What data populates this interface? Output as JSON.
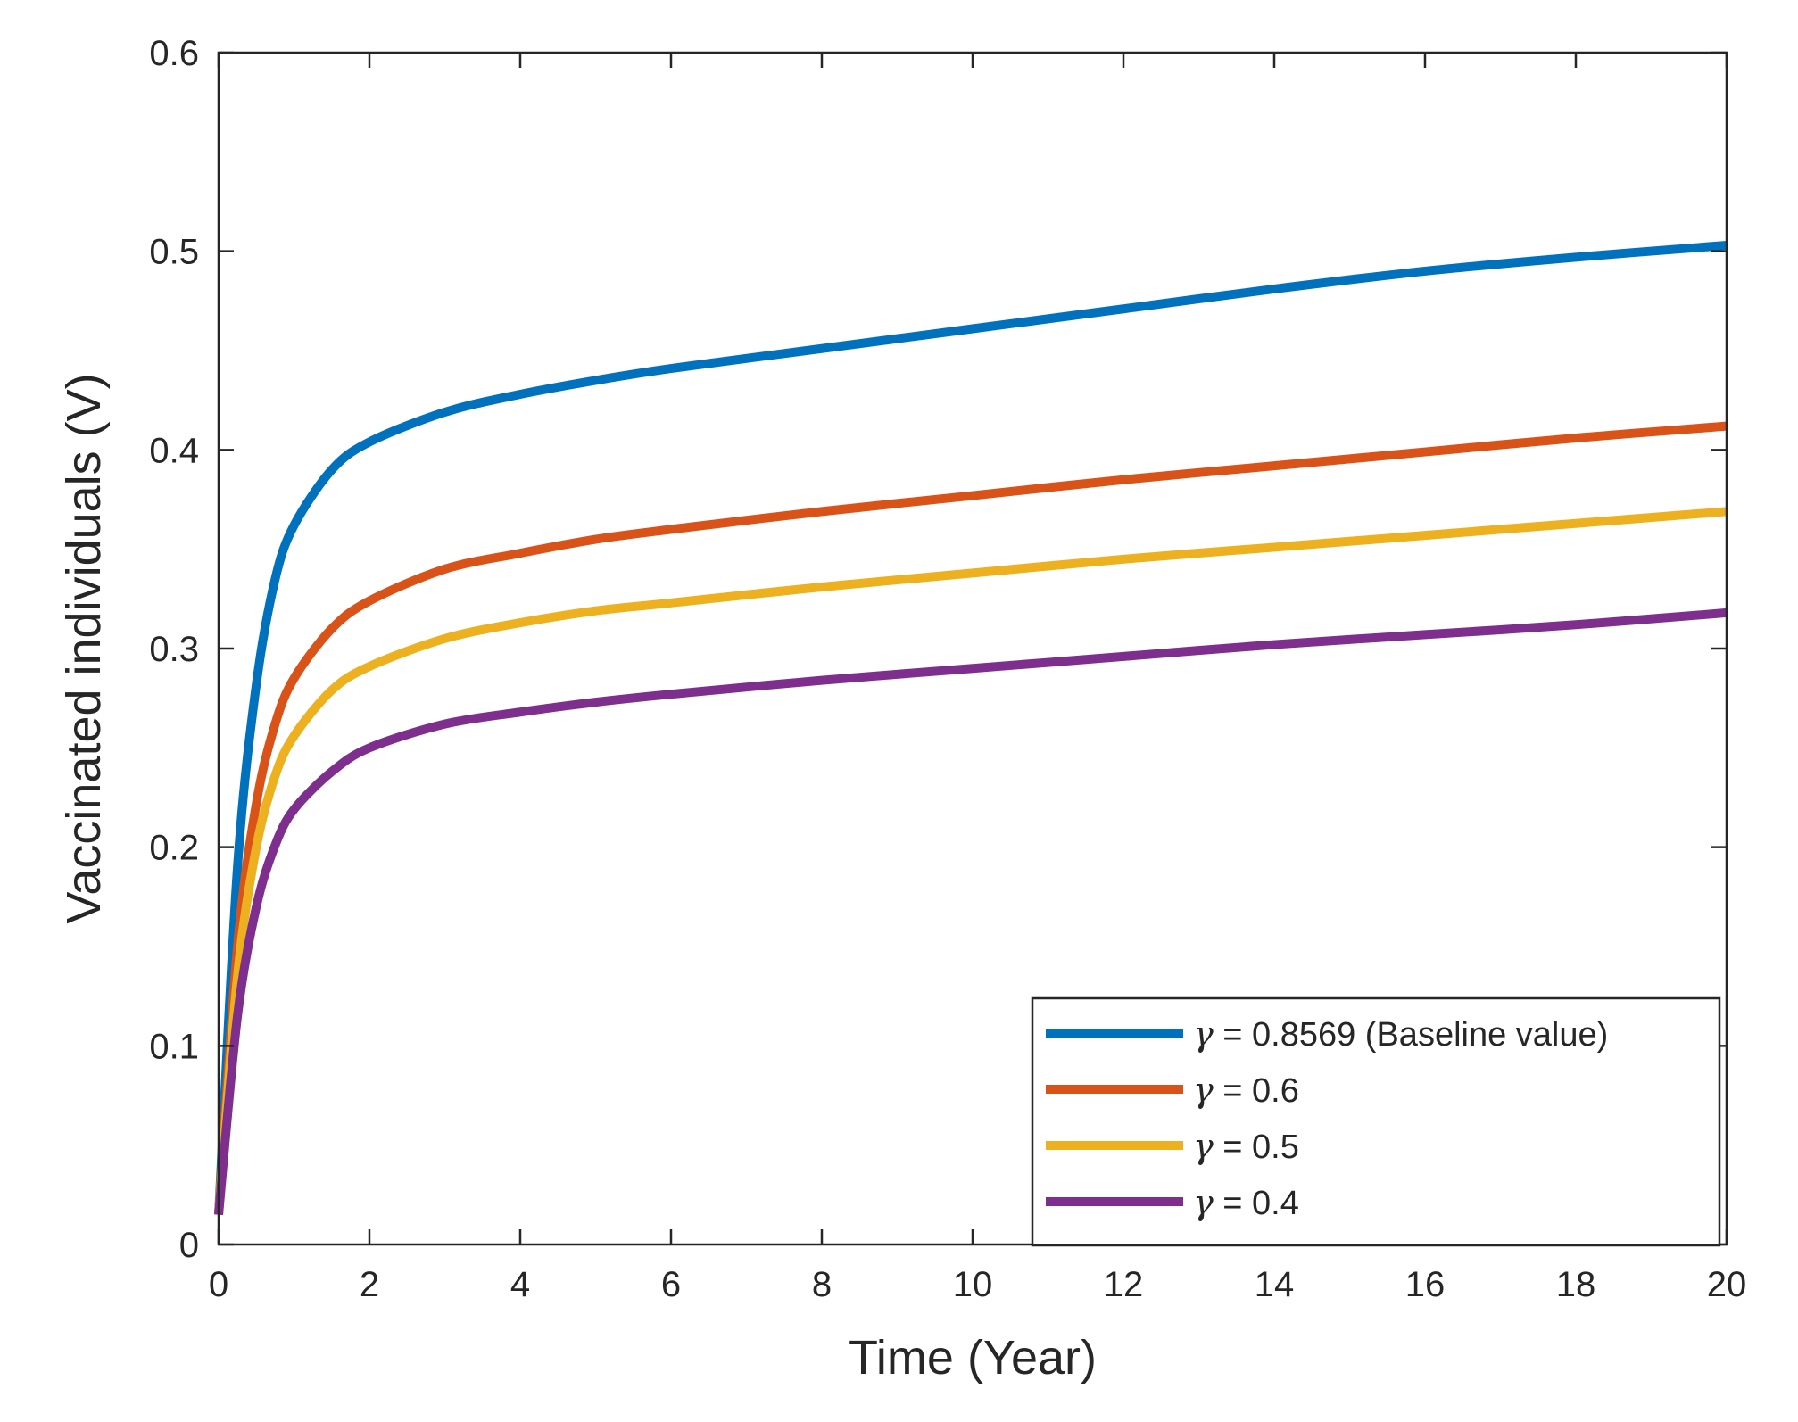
{
  "chart_data": {
    "type": "line",
    "title": "",
    "xlabel": "Time (Year)",
    "ylabel": "Vaccinated individuals (V)",
    "xlim": [
      0,
      20
    ],
    "ylim": [
      0,
      0.6
    ],
    "xticks": [
      0,
      2,
      4,
      6,
      8,
      10,
      12,
      14,
      16,
      18,
      20
    ],
    "yticks": [
      0,
      0.1,
      0.2,
      0.3,
      0.4,
      0.5,
      0.6
    ],
    "xtick_labels": [
      "0",
      "2",
      "4",
      "6",
      "8",
      "10",
      "12",
      "14",
      "16",
      "18",
      "20"
    ],
    "ytick_labels": [
      "0",
      "0.1",
      "0.2",
      "0.3",
      "0.4",
      "0.5",
      "0.6"
    ],
    "grid": false,
    "legend_position": "bottom-right",
    "series": [
      {
        "name": "γ = 0.8569 (Baseline value)",
        "symbol": "γ",
        "label_rest": " = 0.8569 (Baseline value)",
        "color": "#0072BD",
        "x": [
          0,
          0.25,
          0.5,
          0.75,
          1,
          1.5,
          2,
          3,
          4,
          5,
          6,
          8,
          10,
          12,
          14,
          16,
          18,
          20
        ],
        "y": [
          0.015,
          0.19,
          0.282,
          0.335,
          0.362,
          0.39,
          0.404,
          0.419,
          0.428,
          0.435,
          0.441,
          0.451,
          0.461,
          0.471,
          0.481,
          0.49,
          0.497,
          0.503
        ]
      },
      {
        "name": "γ = 0.6",
        "symbol": "γ",
        "label_rest": " = 0.6",
        "color": "#D95319",
        "x": [
          0,
          0.25,
          0.5,
          0.75,
          1,
          1.5,
          2,
          3,
          4,
          5,
          6,
          8,
          10,
          12,
          14,
          16,
          18,
          20
        ],
        "y": [
          0.015,
          0.15,
          0.222,
          0.262,
          0.285,
          0.31,
          0.324,
          0.34,
          0.348,
          0.355,
          0.36,
          0.369,
          0.377,
          0.385,
          0.392,
          0.399,
          0.406,
          0.412
        ]
      },
      {
        "name": "γ = 0.5",
        "symbol": "γ",
        "label_rest": " = 0.5",
        "color": "#EDB120",
        "x": [
          0,
          0.25,
          0.5,
          0.75,
          1,
          1.5,
          2,
          3,
          4,
          5,
          6,
          8,
          10,
          12,
          14,
          16,
          18,
          20
        ],
        "y": [
          0.015,
          0.135,
          0.2,
          0.236,
          0.256,
          0.279,
          0.291,
          0.305,
          0.313,
          0.319,
          0.323,
          0.331,
          0.338,
          0.345,
          0.351,
          0.357,
          0.363,
          0.369
        ]
      },
      {
        "name": "γ = 0.4",
        "symbol": "γ",
        "label_rest": " = 0.4",
        "color": "#7E2F8E",
        "x": [
          0,
          0.25,
          0.5,
          0.75,
          1,
          1.5,
          2,
          3,
          4,
          5,
          6,
          8,
          10,
          12,
          14,
          16,
          18,
          20
        ],
        "y": [
          0.015,
          0.115,
          0.17,
          0.201,
          0.219,
          0.238,
          0.25,
          0.262,
          0.268,
          0.273,
          0.277,
          0.284,
          0.29,
          0.296,
          0.302,
          0.307,
          0.312,
          0.318
        ]
      }
    ]
  }
}
